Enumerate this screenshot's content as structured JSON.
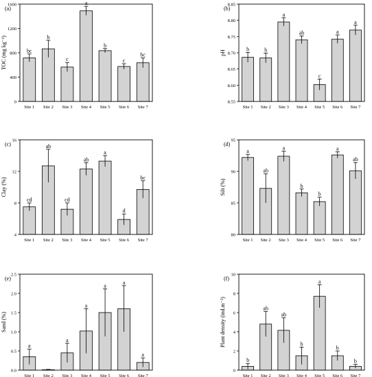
{
  "chart_data": [
    {
      "panel": "(a)",
      "type": "bar",
      "categories": [
        "Site 1",
        "Site 2",
        "Site 3",
        "Site 4",
        "Site 5",
        "Site 6",
        "Site 7"
      ],
      "values": [
        715,
        865,
        565,
        1490,
        835,
        575,
        635
      ],
      "errors": [
        65,
        140,
        75,
        75,
        35,
        45,
        80
      ],
      "letters": [
        "bc",
        "b",
        "c",
        "a",
        "b",
        "c",
        "bc"
      ],
      "ylabel": "TOC (mg kg⁻¹)",
      "ylim": [
        0,
        1600
      ],
      "yticks": [
        0,
        400,
        800,
        1200,
        1600
      ],
      "yticklabels": [
        "0",
        "400",
        "800",
        "1200",
        "1600"
      ]
    },
    {
      "panel": "(b)",
      "type": "bar",
      "categories": [
        "Site 1",
        "Site 2",
        "Site 3",
        "Site 4",
        "Site 5",
        "Site 6",
        "Site 7"
      ],
      "values": [
        8.686,
        8.684,
        8.795,
        8.74,
        8.602,
        8.742,
        8.77
      ],
      "errors": [
        0.015,
        0.015,
        0.013,
        0.012,
        0.017,
        0.013,
        0.015
      ],
      "letters": [
        "b",
        "b",
        "a",
        "ab",
        "c",
        "a",
        "a"
      ],
      "ylabel": "pH",
      "ylim": [
        8.55,
        8.85
      ],
      "yticks": [
        8.55,
        8.6,
        8.65,
        8.7,
        8.75,
        8.8,
        8.85
      ],
      "yticklabels": [
        "8.55",
        "8.60",
        "8.65",
        "8.70",
        "8.75",
        "8.80",
        "8.85"
      ]
    },
    {
      "panel": "(c)",
      "type": "bar",
      "categories": [
        "Site 1",
        "Site 2",
        "Site 3",
        "Site 4",
        "Site 5",
        "Site 6",
        "Site 7"
      ],
      "values": [
        7.5,
        12.7,
        7.2,
        12.3,
        13.3,
        5.9,
        9.7
      ],
      "errors": [
        0.5,
        2.1,
        0.8,
        0.8,
        0.7,
        0.7,
        1.1
      ],
      "letters": [
        "cd",
        "ab",
        "cd",
        "ab",
        "a",
        "d",
        "bc"
      ],
      "ylabel": "Clay (%)",
      "ylim": [
        4,
        16
      ],
      "yticks": [
        4,
        8,
        12,
        16
      ],
      "yticklabels": [
        "4",
        "8",
        "12",
        "16"
      ]
    },
    {
      "panel": "(d)",
      "type": "bar",
      "categories": [
        "Site 1",
        "Site 2",
        "Site 3",
        "Site 4",
        "Site 5",
        "Site 6",
        "Site 7"
      ],
      "values": [
        92.2,
        87.3,
        92.4,
        86.6,
        85.2,
        92.6,
        90.1
      ],
      "errors": [
        0.5,
        2.3,
        0.8,
        0.6,
        0.7,
        0.5,
        1.3
      ],
      "letters": [
        "a",
        "ab",
        "a",
        "b",
        "b",
        "a",
        "ab"
      ],
      "ylabel": "Silt (%)",
      "ylim": [
        80,
        95
      ],
      "yticks": [
        80,
        85,
        90,
        95
      ],
      "yticklabels": [
        "80",
        "85",
        "90",
        "95"
      ]
    },
    {
      "panel": "(e)",
      "type": "bar",
      "categories": [
        "Site 1",
        "Site 2",
        "Site 3",
        "Site 4",
        "Site 5",
        "Site 6",
        "Site 7"
      ],
      "values": [
        0.35,
        0.01,
        0.45,
        1.02,
        1.5,
        1.6,
        0.2
      ],
      "errors": [
        0.2,
        0.01,
        0.25,
        0.58,
        0.62,
        0.6,
        0.12
      ],
      "letters": [
        "a",
        "",
        "a",
        "a",
        "a",
        "a",
        "a"
      ],
      "ylabel": "Sand (%)",
      "ylim": [
        0,
        2.5
      ],
      "yticks": [
        0,
        0.5,
        1,
        1.5,
        2,
        2.5
      ],
      "yticklabels": [
        "0.0",
        "0.5",
        "1.0",
        "1.5",
        "2.0",
        "2.5"
      ]
    },
    {
      "panel": "(f)",
      "type": "bar",
      "categories": [
        "Site 1",
        "Site 2",
        "Site 3",
        "Site 4",
        "Site 5",
        "Site 6",
        "Site 7"
      ],
      "values": [
        0.4,
        4.8,
        4.15,
        1.5,
        7.7,
        1.5,
        0.4
      ],
      "errors": [
        0.3,
        1.3,
        1.3,
        0.9,
        1.2,
        0.5,
        0.2
      ],
      "letters": [
        "b",
        "ab",
        "ab",
        "b",
        "a",
        "b",
        "b"
      ],
      "ylabel": "Plant density (ind.m⁻²)",
      "ylim": [
        0,
        10
      ],
      "yticks": [
        0,
        2,
        4,
        6,
        8,
        10
      ],
      "yticklabels": [
        "0",
        "2",
        "4",
        "6",
        "8",
        "10"
      ]
    }
  ]
}
